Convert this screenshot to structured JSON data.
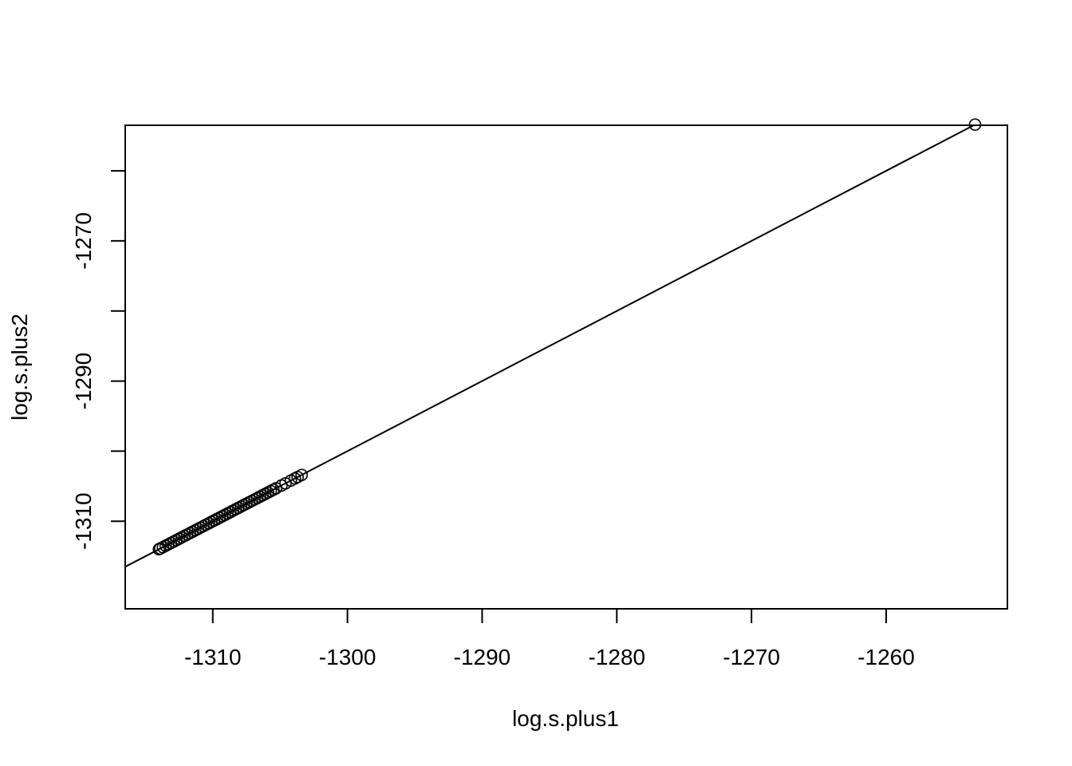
{
  "chart_data": {
    "type": "scatter",
    "title": "",
    "xlabel": "log.s.plus1",
    "ylabel": "log.s.plus2",
    "xlim": [
      -1316.5,
      -1251
    ],
    "ylim": [
      -1322.5,
      -1253.5
    ],
    "x_ticks": [
      -1310,
      -1300,
      -1290,
      -1280,
      -1270,
      -1260
    ],
    "x_tick_labels": [
      "-1310",
      "-1300",
      "-1290",
      "-1280",
      "-1270",
      "-1260"
    ],
    "y_ticks": [
      -1310,
      -1300,
      -1290,
      -1280,
      -1270,
      -1260
    ],
    "y_tick_labels": [
      "-1310",
      "",
      "-1290",
      "",
      "-1270",
      ""
    ],
    "reference_line": {
      "intercept": 0,
      "slope": 1
    },
    "marker": "open-circle",
    "grid": false,
    "legend": "none",
    "points": {
      "x": [
        -1253.4,
        -1303.4,
        -1303.7,
        -1303.9,
        -1304.2,
        -1304.6,
        -1304.9,
        -1305.3,
        -1305.5,
        -1305.7,
        -1305.9,
        -1306.1,
        -1306.3,
        -1306.5,
        -1306.7,
        -1306.9,
        -1307.1,
        -1307.3,
        -1307.5,
        -1307.7,
        -1307.9,
        -1308.1,
        -1308.3,
        -1308.5,
        -1308.7,
        -1308.9,
        -1309.1,
        -1309.3,
        -1309.5,
        -1309.7,
        -1309.9,
        -1310.1,
        -1310.3,
        -1310.5,
        -1310.7,
        -1310.9,
        -1311.1,
        -1311.3,
        -1311.5,
        -1311.7,
        -1311.9,
        -1312.1,
        -1312.3,
        -1312.5,
        -1312.7,
        -1312.9,
        -1313.1,
        -1313.3,
        -1313.5,
        -1313.7,
        -1313.9,
        -1314.0
      ],
      "y": [
        -1253.4,
        -1303.4,
        -1303.7,
        -1303.9,
        -1304.2,
        -1304.6,
        -1304.9,
        -1305.3,
        -1305.5,
        -1305.7,
        -1305.9,
        -1306.1,
        -1306.3,
        -1306.5,
        -1306.7,
        -1306.9,
        -1307.1,
        -1307.3,
        -1307.5,
        -1307.7,
        -1307.9,
        -1308.1,
        -1308.3,
        -1308.5,
        -1308.7,
        -1308.9,
        -1309.1,
        -1309.3,
        -1309.5,
        -1309.7,
        -1309.9,
        -1310.1,
        -1310.3,
        -1310.5,
        -1310.7,
        -1310.9,
        -1311.1,
        -1311.3,
        -1311.5,
        -1311.7,
        -1311.9,
        -1312.1,
        -1312.3,
        -1312.5,
        -1312.7,
        -1312.9,
        -1313.1,
        -1313.3,
        -1313.5,
        -1313.7,
        -1313.9,
        -1314.0
      ]
    }
  }
}
